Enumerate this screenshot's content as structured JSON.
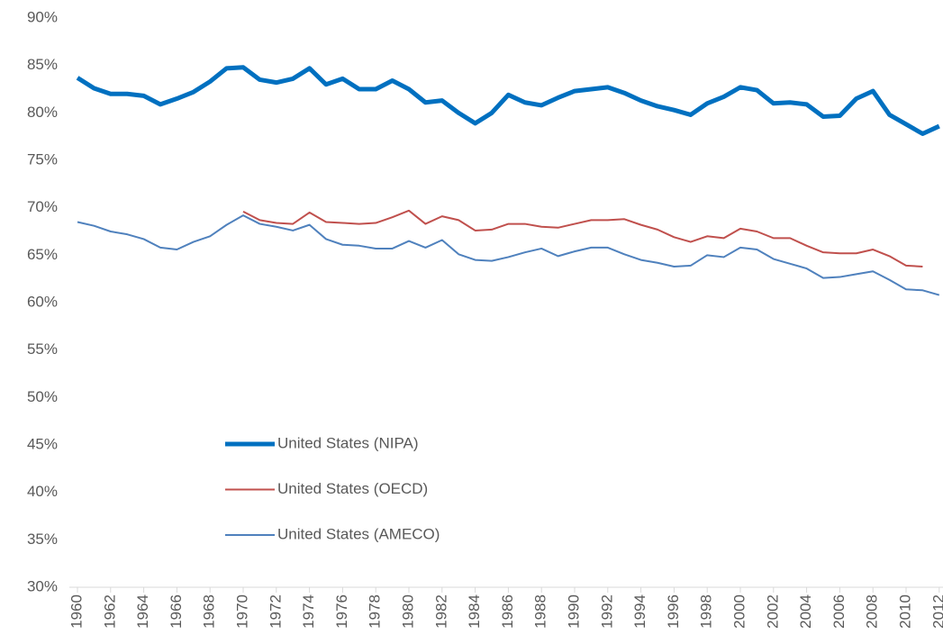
{
  "chart_data": {
    "type": "line",
    "x": [
      1960,
      1961,
      1962,
      1963,
      1964,
      1965,
      1966,
      1967,
      1968,
      1969,
      1970,
      1971,
      1972,
      1973,
      1974,
      1975,
      1976,
      1977,
      1978,
      1979,
      1980,
      1981,
      1982,
      1983,
      1984,
      1985,
      1986,
      1987,
      1988,
      1989,
      1990,
      1991,
      1992,
      1993,
      1994,
      1995,
      1996,
      1997,
      1998,
      1999,
      2000,
      2001,
      2002,
      2003,
      2004,
      2005,
      2006,
      2007,
      2008,
      2009,
      2010,
      2011,
      2012
    ],
    "xlim": [
      1959.5,
      2012.5
    ],
    "xticks": [
      1960,
      1962,
      1964,
      1966,
      1968,
      1970,
      1972,
      1974,
      1976,
      1978,
      1980,
      1982,
      1984,
      1986,
      1988,
      1990,
      1992,
      1994,
      1996,
      1998,
      2000,
      2002,
      2004,
      2006,
      2008,
      2010,
      2012
    ],
    "ylim": [
      30,
      90
    ],
    "yticks": [
      {
        "value": 30,
        "label": "30%"
      },
      {
        "value": 35,
        "label": "35%"
      },
      {
        "value": 40,
        "label": "40%"
      },
      {
        "value": 45,
        "label": "45%"
      },
      {
        "value": 50,
        "label": "50%"
      },
      {
        "value": 55,
        "label": "55%"
      },
      {
        "value": 60,
        "label": "60%"
      },
      {
        "value": 65,
        "label": "65%"
      },
      {
        "value": 70,
        "label": "70%"
      },
      {
        "value": 75,
        "label": "75%"
      },
      {
        "value": 80,
        "label": "80%"
      },
      {
        "value": 85,
        "label": "85%"
      },
      {
        "value": 90,
        "label": "90%"
      }
    ],
    "grid": false,
    "legend": "center left",
    "series": [
      {
        "name": "United States (NIPA)",
        "color": "#0070c0",
        "line_width": 5,
        "values": [
          83.7,
          82.6,
          82.0,
          82.0,
          81.8,
          80.9,
          81.5,
          82.2,
          83.3,
          84.7,
          84.8,
          83.5,
          83.2,
          83.6,
          84.7,
          83.0,
          83.6,
          82.5,
          82.5,
          83.4,
          82.5,
          81.1,
          81.3,
          80.0,
          78.9,
          80.0,
          81.9,
          81.1,
          80.8,
          81.6,
          82.3,
          82.5,
          82.7,
          82.1,
          81.3,
          80.7,
          80.3,
          79.8,
          81.0,
          81.7,
          82.7,
          82.4,
          81.0,
          81.1,
          80.9,
          79.6,
          79.7,
          81.5,
          82.3,
          79.8,
          78.8,
          77.8,
          78.6
        ]
      },
      {
        "name": "United States (OECD)",
        "color": "#c0504d",
        "line_width": 2,
        "values": [
          null,
          null,
          null,
          null,
          null,
          null,
          null,
          null,
          null,
          null,
          69.6,
          68.7,
          68.4,
          68.3,
          69.5,
          68.5,
          68.4,
          68.3,
          68.4,
          69.0,
          69.7,
          68.3,
          69.1,
          68.7,
          67.6,
          67.7,
          68.3,
          68.3,
          68.0,
          67.9,
          68.3,
          68.7,
          68.7,
          68.8,
          68.2,
          67.7,
          66.9,
          66.4,
          67.0,
          66.8,
          67.8,
          67.5,
          66.8,
          66.8,
          66.0,
          65.3,
          65.2,
          65.2,
          65.6,
          64.9,
          63.9,
          63.8,
          null
        ]
      },
      {
        "name": "United States (AMECO)",
        "color": "#4f81bd",
        "line_width": 2,
        "values": [
          68.5,
          68.1,
          67.5,
          67.2,
          66.7,
          65.8,
          65.6,
          66.4,
          67.0,
          68.2,
          69.2,
          68.3,
          68.0,
          67.6,
          68.2,
          66.7,
          66.1,
          66.0,
          65.7,
          65.7,
          66.5,
          65.8,
          66.6,
          65.1,
          64.5,
          64.4,
          64.8,
          65.3,
          65.7,
          64.9,
          65.4,
          65.8,
          65.8,
          65.1,
          64.5,
          64.2,
          63.8,
          63.9,
          65.0,
          64.8,
          65.8,
          65.6,
          64.6,
          64.1,
          63.6,
          62.6,
          62.7,
          63.0,
          63.3,
          62.4,
          61.4,
          61.3,
          60.8
        ]
      }
    ]
  }
}
